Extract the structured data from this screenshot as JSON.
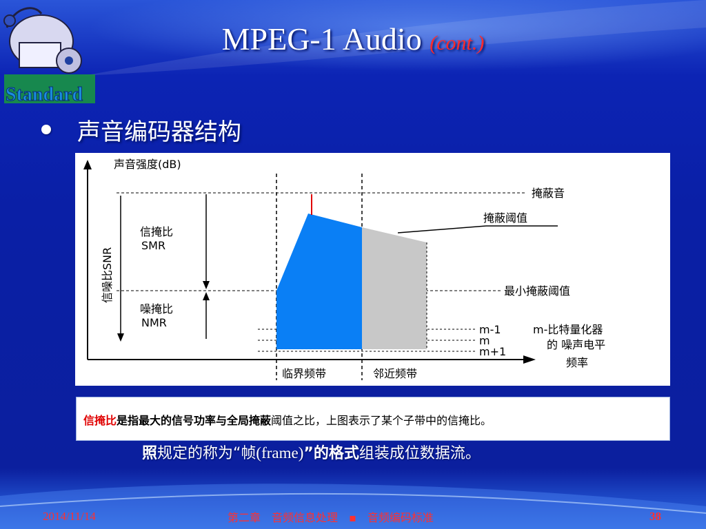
{
  "slide": {
    "title": "MPEG-1 Audio",
    "title_suffix": "(cont.)",
    "logo_text": "Standard",
    "bullet": "声音编码器结构"
  },
  "diagram": {
    "y_axis_title": "声音强度(dB)",
    "x_axis_title": "频率",
    "vertical_label": "信噪比SNR",
    "smr_label": "信掩比",
    "smr_abbr": "SMR",
    "nmr_label": "噪掩比",
    "nmr_abbr": "NMR",
    "masker_label": "掩蔽音",
    "mask_threshold_label": "掩蔽阈值",
    "min_mask_threshold_label": "最小掩蔽阈值",
    "level_m_minus_1": "m-1",
    "level_m": "m",
    "level_m_plus_1": "m+1",
    "quant_noise_label_1": "m-比特量化器",
    "quant_noise_label_2": "的 噪声电平",
    "critical_band_label": "临界频带",
    "adjacent_band_label": "邻近频带",
    "critical_band_color": "#0a7ff5",
    "adjacent_band_color": "#c8c8c8",
    "masker_color": "#e00000"
  },
  "caption": {
    "part_red": "信掩比",
    "part_bold": "是指最大的信号功率与全局掩蔽",
    "part_normal": "阈值之比，上图表示了某个子带中的信掩比。"
  },
  "under_line": {
    "p1": "照",
    "p2": "规定的称为“帧",
    "p3": "(frame)",
    "p4": "”的格式",
    "p5": "组装成位数据流。"
  },
  "footer": {
    "date": "2014/11/14",
    "chapter": "第二章　音频信息处理　▪　音频编码标准",
    "page": "38"
  }
}
